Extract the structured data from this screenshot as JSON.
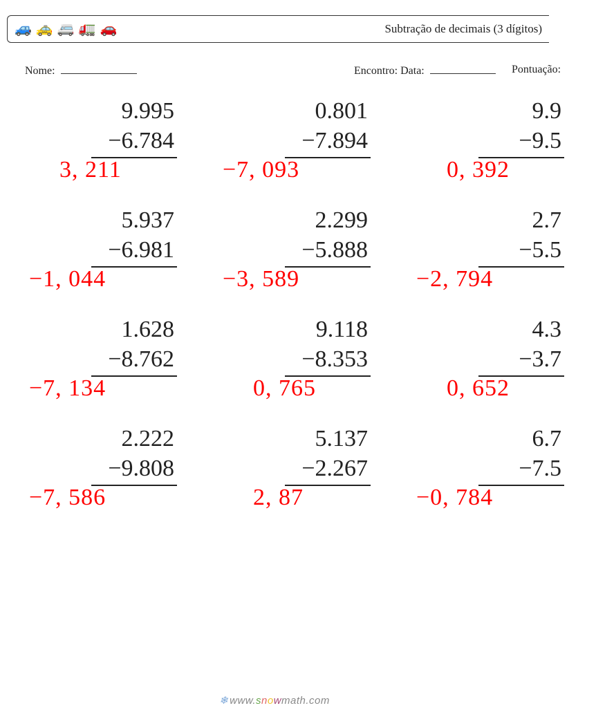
{
  "header": {
    "title": "Subtração de decimais (3 dígitos)",
    "vehicles": [
      "🚙",
      "🚕",
      "🚐",
      "🚛",
      "🚗"
    ]
  },
  "labels": {
    "nome": "Nome:",
    "encontro": "Encontro: Data:",
    "pontuacao": "Pontuação:"
  },
  "style": {
    "number_color": "#222222",
    "answer_color": "#ff0000",
    "number_fontsize": 34,
    "font_family": "Georgia, 'Times New Roman', serif",
    "rule_color": "#222222",
    "background": "#ffffff"
  },
  "problems": [
    [
      {
        "minuend": "9.995",
        "subtrahend": "−6.784",
        "answer": "3, 211",
        "answer_indent": true
      },
      {
        "minuend": "0.801",
        "subtrahend": "−7.894",
        "answer": "−7, 093",
        "answer_indent": false
      },
      {
        "minuend": "9.9",
        "subtrahend": "−9.5",
        "answer": "0, 392",
        "answer_indent": true
      }
    ],
    [
      {
        "minuend": "5.937",
        "subtrahend": "−6.981",
        "answer": "−1, 044",
        "answer_indent": false
      },
      {
        "minuend": "2.299",
        "subtrahend": "−5.888",
        "answer": "−3, 589",
        "answer_indent": false
      },
      {
        "minuend": "2.7",
        "subtrahend": "−5.5",
        "answer": "−2, 794",
        "answer_indent": false
      }
    ],
    [
      {
        "minuend": "1.628",
        "subtrahend": "−8.762",
        "answer": "−7, 134",
        "answer_indent": false
      },
      {
        "minuend": "9.118",
        "subtrahend": "−8.353",
        "answer": "0, 765",
        "answer_indent": true
      },
      {
        "minuend": "4.3",
        "subtrahend": "−3.7",
        "answer": "0, 652",
        "answer_indent": true
      }
    ],
    [
      {
        "minuend": "2.222",
        "subtrahend": "−9.808",
        "answer": "−7, 586",
        "answer_indent": false
      },
      {
        "minuend": "5.137",
        "subtrahend": "−2.267",
        "answer": "2, 87",
        "answer_indent": true
      },
      {
        "minuend": "6.7",
        "subtrahend": "−7.5",
        "answer": "−0, 784",
        "answer_indent": false
      }
    ]
  ],
  "footer": {
    "url_prefix": "www.",
    "brand_letters": [
      "s",
      "n",
      "o",
      "w"
    ],
    "url_suffix": "math.com"
  }
}
